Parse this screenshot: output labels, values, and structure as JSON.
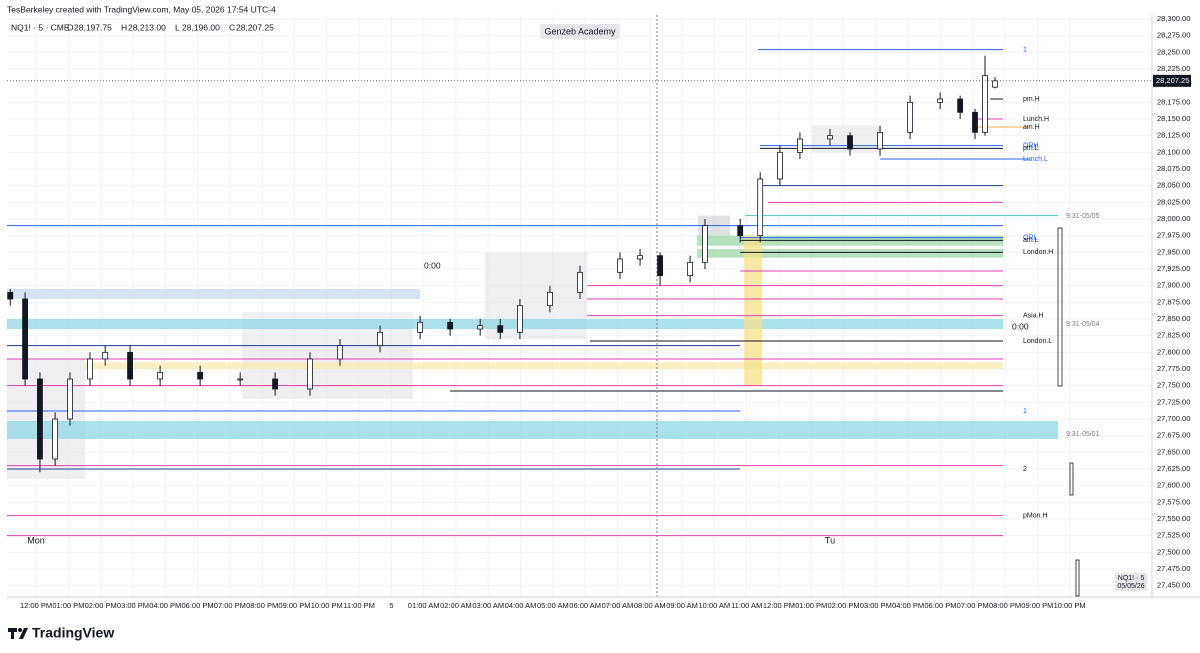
{
  "header": {
    "author_line": "TesBerkeley created with TradingView.com, May 05, 2026 17:54 UTC-4",
    "symbol": "NQ1! · 5 · CME",
    "ohlc": [
      {
        "key": "O",
        "value": "28,197.75"
      },
      {
        "key": "H",
        "value": "28,213.00"
      },
      {
        "key": "L",
        "value": "28,196.00"
      },
      {
        "key": "C",
        "value": "28,207.25"
      }
    ],
    "watermark": "Genzeb Academy"
  },
  "chart_data": {
    "type": "candlestick",
    "x": [
      -0.8,
      -0.34,
      0.12,
      0.59,
      1.05,
      1.67,
      2.14,
      2.91,
      3.84,
      5.08,
      6.32,
      7.4,
      8.48,
      9.41,
      10.65,
      11.89,
      12.82,
      13.75,
      14.37,
      14.98,
      15.91,
      16.84,
      18.08,
      18.7,
      19.32,
      20.25,
      20.71,
      21.8,
      22.42,
      23.03,
      23.65,
      24.58,
      25.2,
      26.13,
      27.06,
      27.99,
      28.61,
      29.07,
      29.38,
      29.69
    ],
    "open": [
      27890,
      27880,
      27760,
      27640,
      27700,
      27760,
      27790,
      27800,
      27760,
      27770,
      27760,
      27760,
      27745,
      27790,
      27810,
      27830,
      27845,
      27835,
      27840,
      27830,
      27870,
      27890,
      27920,
      27940,
      27945,
      27915,
      27935,
      27990,
      27975,
      28060,
      28100,
      28120,
      28125,
      28105,
      28130,
      28175,
      28180,
      28160,
      28130,
      28197.75
    ],
    "high": [
      27895,
      27890,
      27770,
      27710,
      27770,
      27800,
      27810,
      27810,
      27780,
      27780,
      27770,
      27770,
      27800,
      27820,
      27840,
      27855,
      27850,
      27850,
      27850,
      27880,
      27900,
      27930,
      27950,
      27955,
      27950,
      27945,
      28000,
      28000,
      28070,
      28110,
      28130,
      28135,
      28130,
      28140,
      28185,
      28190,
      28185,
      28165,
      28245,
      28213
    ],
    "low": [
      27870,
      27750,
      27620,
      27630,
      27690,
      27750,
      27780,
      27750,
      27750,
      27750,
      27750,
      27735,
      27735,
      27780,
      27800,
      27820,
      27825,
      27825,
      27820,
      27820,
      27860,
      27880,
      27910,
      27930,
      27900,
      27905,
      27925,
      27965,
      27965,
      28050,
      28090,
      28110,
      28095,
      28095,
      28120,
      28165,
      28150,
      28120,
      28125,
      28196
    ],
    "close": [
      27880,
      27760,
      27640,
      27700,
      27760,
      27790,
      27800,
      27760,
      27770,
      27760,
      27760,
      27745,
      27790,
      27810,
      27830,
      27845,
      27835,
      27840,
      27830,
      27870,
      27890,
      27920,
      27940,
      27945,
      27915,
      27935,
      27990,
      27975,
      28060,
      28100,
      28120,
      28125,
      28105,
      28130,
      28175,
      28180,
      28160,
      28130,
      28215,
      28207.25
    ],
    "last_price_label": "28,207.25",
    "up_color": "#ffffff",
    "down_color": "#131722",
    "xlim": [
      -0.9,
      34.55
    ],
    "xticks": [
      {
        "value": 0,
        "label": "12:00 PM"
      },
      {
        "value": 1,
        "label": "01:00 PM"
      },
      {
        "value": 2,
        "label": "02:00 PM"
      },
      {
        "value": 3,
        "label": "03:00 PM"
      },
      {
        "value": 4,
        "label": "04:00 PM"
      },
      {
        "value": 5,
        "label": "06:00 PM"
      },
      {
        "value": 6,
        "label": "07:00 PM"
      },
      {
        "value": 7,
        "label": "08:00 PM"
      },
      {
        "value": 8,
        "label": "09:00 PM"
      },
      {
        "value": 9,
        "label": "10:00 PM"
      },
      {
        "value": 10,
        "label": "11:00 PM"
      },
      {
        "value": 11,
        "label": "5"
      },
      {
        "value": 12,
        "label": "01:00 AM"
      },
      {
        "value": 13,
        "label": "02:00 AM"
      },
      {
        "value": 14,
        "label": "03:00 AM"
      },
      {
        "value": 15,
        "label": "04:00 AM"
      },
      {
        "value": 16,
        "label": "05:00 AM"
      },
      {
        "value": 17,
        "label": "06:00 AM"
      },
      {
        "value": 18,
        "label": "07:00 AM"
      },
      {
        "value": 19,
        "label": "08:00 AM"
      },
      {
        "value": 20,
        "label": "09:00 AM"
      },
      {
        "value": 21,
        "label": "10:00 AM"
      },
      {
        "value": 22,
        "label": "11:00 AM"
      },
      {
        "value": 23,
        "label": "12:00 PM"
      },
      {
        "value": 24,
        "label": "01:00 PM"
      },
      {
        "value": 25,
        "label": "02:00 PM"
      },
      {
        "value": 26,
        "label": "03:00 PM"
      },
      {
        "value": 27,
        "label": "04:00 PM"
      },
      {
        "value": 28,
        "label": "06:00 PM"
      },
      {
        "value": 29,
        "label": "07:00 PM"
      },
      {
        "value": 30,
        "label": "08:00 PM"
      },
      {
        "value": 31,
        "label": "09:00 PM"
      },
      {
        "value": 32,
        "label": "10:00 PM"
      }
    ],
    "ylim": [
      27433,
      28306
    ],
    "yticks": [
      {
        "value": 28300,
        "label": "28,300.00"
      },
      {
        "value": 28275,
        "label": "28,275.00"
      },
      {
        "value": 28250,
        "label": "28,250.00"
      },
      {
        "value": 28225,
        "label": "28,225.00"
      },
      {
        "value": 28175,
        "label": "28,175.00"
      },
      {
        "value": 28150,
        "label": "28,150.00"
      },
      {
        "value": 28125,
        "label": "28,125.00"
      },
      {
        "value": 28100,
        "label": "28,100.00"
      },
      {
        "value": 28075,
        "label": "28,075.00"
      },
      {
        "value": 28050,
        "label": "28,050.00"
      },
      {
        "value": 28025,
        "label": "28,025.00"
      },
      {
        "value": 28000,
        "label": "28,000.00"
      },
      {
        "value": 27975,
        "label": "27,975.00"
      },
      {
        "value": 27950,
        "label": "27,950.00"
      },
      {
        "value": 27925,
        "label": "27,925.00"
      },
      {
        "value": 27900,
        "label": "27,900.00"
      },
      {
        "value": 27875,
        "label": "27,875.00"
      },
      {
        "value": 27850,
        "label": "27,850.00"
      },
      {
        "value": 27825,
        "label": "27,825.00"
      },
      {
        "value": 27800,
        "label": "27,800.00"
      },
      {
        "value": 27775,
        "label": "27,775.00"
      },
      {
        "value": 27750,
        "label": "27,750.00"
      },
      {
        "value": 27725,
        "label": "27,725.00"
      },
      {
        "value": 27700,
        "label": "27,700.00"
      },
      {
        "value": 27675,
        "label": "27,675.00"
      },
      {
        "value": 27650,
        "label": "27,650.00"
      },
      {
        "value": 27625,
        "label": "27,625.00"
      },
      {
        "value": 27600,
        "label": "27,600.00"
      },
      {
        "value": 27575,
        "label": "27,575.00"
      },
      {
        "value": 27550,
        "label": "27,550.00"
      },
      {
        "value": 27525,
        "label": "27,525.00"
      },
      {
        "value": 27500,
        "label": "27,500.00"
      },
      {
        "value": 27475,
        "label": "27,475.00"
      },
      {
        "value": 27450,
        "label": "27,450.00"
      }
    ],
    "grid": true,
    "zones": [
      {
        "from": -0.9,
        "to": 1.52,
        "low": 27610,
        "high": 27790,
        "color": "#e9eaee"
      },
      {
        "from": 6.38,
        "to": 11.67,
        "low": 27730,
        "high": 27860,
        "color": "#e9eaee"
      },
      {
        "from": 13.9,
        "to": 17.06,
        "low": 27820,
        "high": 27950,
        "color": "#e9eaee"
      },
      {
        "from": 20.5,
        "to": 21.49,
        "low": 27975,
        "high": 28005,
        "color": "#d6d7db"
      },
      {
        "from": 24.02,
        "to": 26.13,
        "low": 28100,
        "high": 28140,
        "color": "#e9eaee"
      },
      {
        "from": -0.9,
        "to": 11.89,
        "low": 27880,
        "high": 27895,
        "color": "#c7d9ee"
      },
      {
        "from": -0.9,
        "to": 29.94,
        "low": 27835,
        "high": 27850,
        "color": "#8fd8e2"
      },
      {
        "from": -0.9,
        "to": 31.64,
        "low": 27670,
        "high": 27697,
        "color": "#8fd8e2"
      },
      {
        "from": 1.52,
        "to": 29.94,
        "low": 27775,
        "high": 27785,
        "color": "#f7ecb0"
      },
      {
        "from": 20.46,
        "to": 29.94,
        "low": 27960,
        "high": 27975,
        "color": "#9fd6a8"
      },
      {
        "from": 20.46,
        "to": 29.94,
        "low": 27942,
        "high": 27955,
        "color": "#9fd6a8"
      },
      {
        "from": 21.92,
        "to": 22.48,
        "low": 27750,
        "high": 27975,
        "color": "#f5e28a"
      }
    ],
    "levels": [
      {
        "price": 28254,
        "from": 22.35,
        "to": 29.94,
        "color": "#2962ff",
        "label": "1"
      },
      {
        "price": 28180,
        "from": 29.54,
        "to": 29.94,
        "color": "#131722",
        "label": "pm.H"
      },
      {
        "price": 28150,
        "from": 29.07,
        "to": 29.94,
        "color": "#e040b0",
        "label": "Lunch.H"
      },
      {
        "price": 28138,
        "from": 29.07,
        "to": 30.77,
        "color": "#f0b040",
        "label": "am.H"
      },
      {
        "price": 28110,
        "from": 22.41,
        "to": 29.94,
        "color": "#2962ff",
        "label": "ORH"
      },
      {
        "price": 28106,
        "from": 22.41,
        "to": 29.94,
        "color": "#131722",
        "label": "pm.L"
      },
      {
        "price": 28090,
        "from": 26.13,
        "to": 30.77,
        "color": "#2962ff",
        "label": "Lunch.L"
      },
      {
        "price": 28050,
        "from": 22.41,
        "to": 29.94,
        "color": "#1e3a9a"
      },
      {
        "price": 28025,
        "from": 22.66,
        "to": 29.94,
        "color": "#e040b0"
      },
      {
        "price": 28005,
        "from": 21.95,
        "to": 31.64,
        "color": "#4fc3c8"
      },
      {
        "price": 27990,
        "from": -0.9,
        "to": 29.94,
        "color": "#2962ff"
      },
      {
        "price": 27972,
        "from": 21.8,
        "to": 29.94,
        "color": "#2962ff",
        "label": "ORL"
      },
      {
        "price": 27968,
        "from": 21.8,
        "to": 29.94,
        "color": "#131722",
        "label": "am.L"
      },
      {
        "price": 27950,
        "from": 21.8,
        "to": 29.94,
        "color": "#131722",
        "label": "London.H"
      },
      {
        "price": 27922,
        "from": 21.8,
        "to": 29.94,
        "color": "#e040b0"
      },
      {
        "price": 27900,
        "from": 17.06,
        "to": 29.94,
        "color": "#e040b0"
      },
      {
        "price": 27880,
        "from": 17.06,
        "to": 29.94,
        "color": "#e040b0"
      },
      {
        "price": 27855,
        "from": 17.06,
        "to": 29.94,
        "color": "#e040b0",
        "label": "Asia.H"
      },
      {
        "price": 27817,
        "from": 17.15,
        "to": 29.94,
        "color": "#131722",
        "label": "London.L"
      },
      {
        "price": 27810,
        "from": -0.9,
        "to": 21.8,
        "color": "#1e3a9a"
      },
      {
        "price": 27790,
        "from": -0.9,
        "to": 29.94,
        "color": "#e040b0"
      },
      {
        "price": 27750,
        "from": -0.9,
        "to": 29.94,
        "color": "#e040b0"
      },
      {
        "price": 27742,
        "from": 12.82,
        "to": 29.94,
        "color": "#131722"
      },
      {
        "price": 27712,
        "from": -0.9,
        "to": 21.8,
        "color": "#2962ff",
        "label": "1"
      },
      {
        "price": 27630,
        "from": -0.9,
        "to": 29.94,
        "color": "#e040b0"
      },
      {
        "price": 27625,
        "from": -0.9,
        "to": 21.8,
        "color": "#1e3a9a",
        "label": "2"
      },
      {
        "price": 27555,
        "from": -0.9,
        "to": 29.94,
        "color": "#e040b0",
        "label": "pMon.H"
      },
      {
        "price": 27525,
        "from": -0.9,
        "to": 29.94,
        "color": "#e040b0"
      }
    ]
  },
  "annotations": {
    "day_mon": "Mon",
    "day_tue": "Tu",
    "session_a": "0:00",
    "session_b": "0:00",
    "range_1": "9:31-05/05",
    "range_2": "9:31-05/04",
    "range_3": "9:31-05/01",
    "symbol_badge_1": "NQ1! · 5",
    "symbol_badge_2": "05/05/26"
  },
  "footer": {
    "brand": "TradingView"
  }
}
